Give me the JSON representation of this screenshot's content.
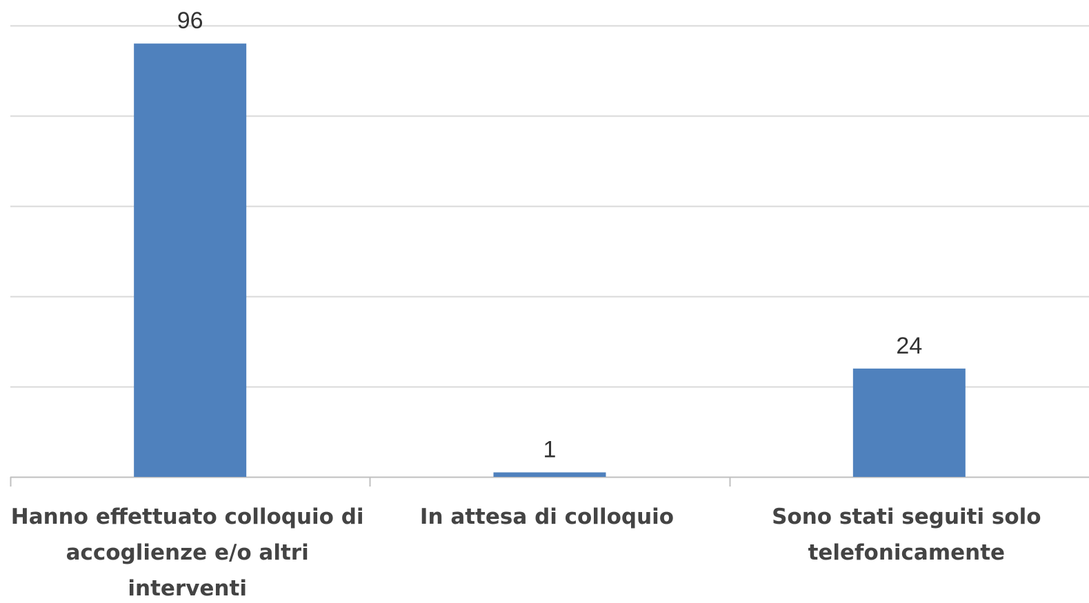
{
  "chart_data": {
    "type": "bar",
    "categories": [
      [
        "Hanno effettuato colloquio di",
        "accoglienze e/o altri",
        "interventi"
      ],
      [
        "In attesa di colloquio"
      ],
      [
        "Sono stati seguiti solo",
        "telefonicamente"
      ]
    ],
    "values": [
      96,
      1,
      24
    ],
    "data_labels": [
      "96",
      "1",
      "24"
    ],
    "ylim": [
      0,
      100
    ],
    "y_gridline_step": 20,
    "grid": true,
    "y_axis_visible": false,
    "legend": "none",
    "colors": {
      "bar": "#4f81bd",
      "gridline": "#d9d9d9",
      "axis": "#bfbfbf"
    }
  }
}
